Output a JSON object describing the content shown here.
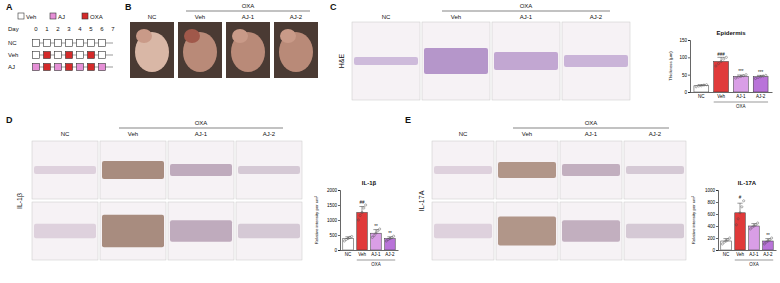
{
  "panel_labels": [
    "A",
    "B",
    "C",
    "D",
    "E"
  ],
  "groups": {
    "control": "NC",
    "treatment": "OXA",
    "treated": [
      "Veh",
      "AJ-1",
      "AJ-2"
    ]
  },
  "stain_labels": [
    "H&E",
    "IL-1β",
    "IL-17A"
  ],
  "schedule": {
    "legend": [
      {
        "name": "Veh",
        "color": "#ffffff"
      },
      {
        "name": "AJ",
        "color": "#e58fd6"
      },
      {
        "name": "OXA",
        "color": "#d42a2a"
      }
    ],
    "day_label": "Day",
    "days": [
      0,
      1,
      2,
      3,
      4,
      5,
      6,
      7
    ],
    "rows": [
      {
        "name": "NC",
        "treatments": [
          "Veh",
          "Veh",
          "Veh",
          "Veh",
          "Veh",
          "Veh",
          "Veh",
          null
        ]
      },
      {
        "name": "Veh",
        "treatments": [
          "Veh",
          "OXA",
          "Veh",
          "OXA",
          "Veh",
          "OXA",
          "Veh",
          null
        ]
      },
      {
        "name": "AJ",
        "treatments": [
          "AJ",
          "OXA",
          "AJ",
          "OXA",
          "AJ",
          "OXA",
          "AJ",
          null
        ]
      }
    ]
  },
  "chart_data": [
    {
      "type": "bar",
      "title": "Epidermis",
      "ylabel": "Thickness (μm)",
      "categories": [
        "NC",
        "Veh",
        "AJ-1",
        "AJ-2"
      ],
      "group_label": "OXA",
      "values": [
        18,
        88,
        45,
        44
      ],
      "errors": [
        3,
        12,
        4,
        4
      ],
      "points": [
        [
          15,
          17,
          18,
          20,
          21
        ],
        [
          75,
          82,
          88,
          95,
          100
        ],
        [
          40,
          43,
          45,
          47,
          50
        ],
        [
          39,
          42,
          44,
          46,
          48
        ]
      ],
      "annotations": [
        null,
        "###",
        "***",
        "***"
      ],
      "colors": [
        "#ffffff",
        "#e03a3a",
        "#d99ee6",
        "#b973d9"
      ],
      "ylim": [
        0,
        150
      ],
      "yticks": [
        0,
        50,
        100,
        150
      ]
    },
    {
      "type": "bar",
      "title": "IL-1β",
      "ylabel": "Relative intensity per um²",
      "categories": [
        "NC",
        "Veh",
        "AJ-1",
        "AJ-2"
      ],
      "group_label": "OXA",
      "values": [
        380,
        1250,
        560,
        380
      ],
      "errors": [
        60,
        200,
        120,
        60
      ],
      "points": [
        [
          300,
          350,
          380,
          420,
          450
        ],
        [
          1000,
          1150,
          1250,
          1400,
          1500
        ],
        [
          420,
          480,
          560,
          640,
          700
        ],
        [
          300,
          350,
          380,
          410,
          460
        ]
      ],
      "annotations": [
        null,
        "##",
        "**",
        "**"
      ],
      "colors": [
        "#ffffff",
        "#e03a3a",
        "#d99ee6",
        "#b973d9"
      ],
      "ylim": [
        0,
        2000
      ],
      "yticks": [
        0,
        500,
        1000,
        1500,
        2000
      ]
    },
    {
      "type": "bar",
      "title": "IL-17A",
      "ylabel": "Relative intensity per um²",
      "categories": [
        "NC",
        "Veh",
        "AJ-1",
        "AJ-2"
      ],
      "group_label": "OXA",
      "values": [
        150,
        620,
        400,
        150
      ],
      "errors": [
        40,
        160,
        40,
        40
      ],
      "points": [
        [
          100,
          130,
          150,
          170,
          200
        ],
        [
          420,
          520,
          620,
          720,
          820
        ],
        [
          350,
          380,
          400,
          420,
          450
        ],
        [
          100,
          130,
          150,
          170,
          200
        ]
      ],
      "annotations": [
        null,
        "#",
        null,
        "**"
      ],
      "colors": [
        "#ffffff",
        "#e03a3a",
        "#d99ee6",
        "#b973d9"
      ],
      "ylim": [
        0,
        1000
      ],
      "yticks": [
        0,
        200,
        400,
        600,
        800,
        1000
      ]
    }
  ]
}
